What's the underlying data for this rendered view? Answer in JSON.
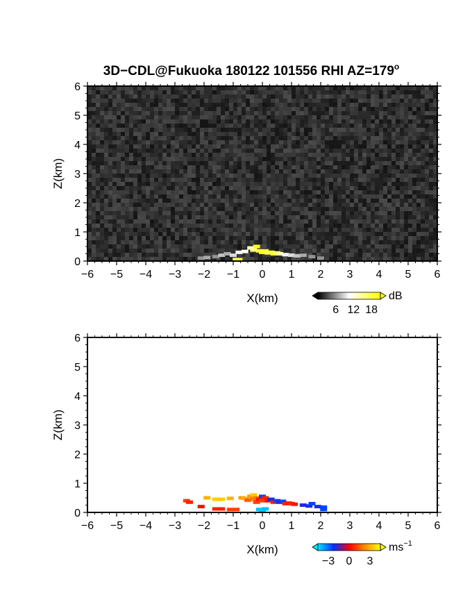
{
  "title": {
    "main": "3D−CDL@Fukuoka 180122 101556 RHI AZ=179",
    "superscript": "o"
  },
  "chart_data": [
    {
      "type": "heatmap",
      "name": "reflectivity-panel",
      "xlabel": "X(km)",
      "ylabel": "Z(km)",
      "xlim": [
        -6,
        6
      ],
      "ylim": [
        0,
        6
      ],
      "xticks": [
        "−6",
        "−5",
        "−4",
        "−3",
        "−2",
        "−1",
        "0",
        "1",
        "2",
        "3",
        "4",
        "5",
        "6"
      ],
      "yticks": [
        "0",
        "1",
        "2",
        "3",
        "4",
        "5",
        "6"
      ],
      "background": "noise",
      "colorbar": {
        "unit": "dB",
        "ticks": [
          "6",
          "12",
          "18"
        ],
        "tick_values": [
          6,
          12,
          18
        ],
        "range": [
          0,
          21
        ],
        "colors": [
          "#000000",
          "#ffffff",
          "#ffff00"
        ]
      },
      "points": [
        [
          -2.1,
          0.1,
          6
        ],
        [
          -1.9,
          0.12,
          7
        ],
        [
          -1.6,
          0.15,
          6
        ],
        [
          -1.4,
          0.2,
          8
        ],
        [
          -1.2,
          0.25,
          7
        ],
        [
          -1.0,
          0.2,
          9
        ],
        [
          -0.8,
          0.3,
          10
        ],
        [
          -0.6,
          0.33,
          11
        ],
        [
          -0.4,
          0.45,
          12
        ],
        [
          -0.3,
          0.38,
          16
        ],
        [
          -0.2,
          0.5,
          20
        ],
        [
          -0.1,
          0.35,
          18
        ],
        [
          0.0,
          0.3,
          20
        ],
        [
          0.1,
          0.35,
          19
        ],
        [
          0.2,
          0.28,
          17
        ],
        [
          0.3,
          0.3,
          18
        ],
        [
          0.4,
          0.25,
          20
        ],
        [
          0.5,
          0.28,
          16
        ],
        [
          0.6,
          0.25,
          14
        ],
        [
          0.8,
          0.22,
          10
        ],
        [
          1.0,
          0.2,
          9
        ],
        [
          1.2,
          0.18,
          8
        ],
        [
          1.4,
          0.2,
          7
        ],
        [
          1.7,
          0.15,
          6
        ],
        [
          2.0,
          0.1,
          6
        ],
        [
          -0.8,
          0.05,
          19
        ],
        [
          -0.9,
          0.05,
          18
        ]
      ]
    },
    {
      "type": "scatter",
      "name": "doppler-velocity-panel",
      "xlabel": "X(km)",
      "ylabel": "Z(km)",
      "xlim": [
        -6,
        6
      ],
      "ylim": [
        0,
        6
      ],
      "xticks": [
        "−6",
        "−5",
        "−4",
        "−3",
        "−2",
        "−1",
        "0",
        "1",
        "2",
        "3",
        "4",
        "5",
        "6"
      ],
      "yticks": [
        "0",
        "1",
        "2",
        "3",
        "4",
        "5",
        "6"
      ],
      "colorbar": {
        "unit": "ms",
        "unit_superscript": "−1",
        "ticks": [
          "−3",
          "0",
          "3"
        ],
        "tick_values": [
          -3,
          0,
          3
        ],
        "range": [
          -4.5,
          4.5
        ],
        "colors": [
          "#00e5ff",
          "#0030ff",
          "#ff0000",
          "#ff8c00",
          "#ffff00"
        ]
      },
      "points": [
        [
          -2.6,
          0.4,
          1.0
        ],
        [
          -2.5,
          0.35,
          0.5
        ],
        [
          -2.1,
          0.2,
          0.2
        ],
        [
          -1.9,
          0.5,
          3.0
        ],
        [
          -1.6,
          0.45,
          3.5
        ],
        [
          -1.4,
          0.45,
          3.5
        ],
        [
          -1.6,
          0.12,
          0.5
        ],
        [
          -1.4,
          0.12,
          0.5
        ],
        [
          -1.1,
          0.48,
          3.0
        ],
        [
          -1.1,
          0.1,
          1.0
        ],
        [
          -0.9,
          0.1,
          1.0
        ],
        [
          -0.7,
          0.5,
          2.5
        ],
        [
          -0.6,
          0.48,
          3.0
        ],
        [
          -0.5,
          0.42,
          1.5
        ],
        [
          -0.4,
          0.55,
          2.5
        ],
        [
          -0.3,
          0.45,
          2.0
        ],
        [
          -0.3,
          0.6,
          3.5
        ],
        [
          -0.2,
          0.5,
          2.0
        ],
        [
          -0.2,
          0.35,
          1.0
        ],
        [
          -0.1,
          0.45,
          0.3
        ],
        [
          0.0,
          0.55,
          -2.5
        ],
        [
          0.0,
          0.4,
          1.0
        ],
        [
          0.1,
          0.5,
          0.5
        ],
        [
          0.2,
          0.4,
          0.2
        ],
        [
          0.3,
          0.45,
          -2.0
        ],
        [
          0.4,
          0.35,
          0.5
        ],
        [
          0.5,
          0.4,
          -2.5
        ],
        [
          0.6,
          0.35,
          -2.0
        ],
        [
          0.7,
          0.38,
          -2.5
        ],
        [
          0.8,
          0.3,
          0.5
        ],
        [
          0.9,
          0.32,
          0.4
        ],
        [
          1.0,
          0.3,
          0.6
        ],
        [
          1.1,
          0.28,
          0.3
        ],
        [
          1.4,
          0.25,
          -2.0
        ],
        [
          1.6,
          0.22,
          -2.0
        ],
        [
          1.7,
          0.3,
          -2.5
        ],
        [
          1.9,
          0.2,
          -2.0
        ],
        [
          2.1,
          0.18,
          -2.5
        ],
        [
          2.1,
          0.1,
          -2.5
        ],
        [
          -0.1,
          0.1,
          -4.0
        ],
        [
          0.0,
          0.08,
          -4.2
        ],
        [
          0.1,
          0.12,
          -4.0
        ]
      ]
    }
  ]
}
